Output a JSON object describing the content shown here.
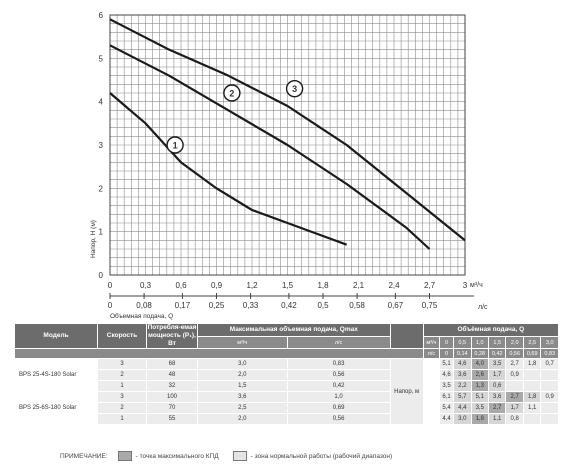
{
  "chart_data": {
    "type": "line",
    "ylabel": "Напор, Н (м)",
    "xlabel_top_unit": "м³/ч",
    "xlabel_bottom": "Объемная подача, Q",
    "xlabel_bottom_unit": "л/с",
    "xlim": [
      0,
      3.0
    ],
    "ylim": [
      0,
      6
    ],
    "y_ticks": [
      "0",
      "1",
      "2",
      "3",
      "4",
      "5",
      "6"
    ],
    "x_ticks_top": [
      "0",
      "0,3",
      "0,6",
      "0,9",
      "1,2",
      "1,5",
      "1,8",
      "2,1",
      "2,4",
      "2,7",
      "3"
    ],
    "x_ticks_top_values": [
      0,
      0.3,
      0.6,
      0.9,
      1.2,
      1.5,
      1.8,
      2.1,
      2.4,
      2.7,
      3.0
    ],
    "x_ticks_bottom": [
      "0",
      "0,08",
      "0,17",
      "0,25",
      "0,33",
      "0,42",
      "0,5",
      "0,58",
      "0,67",
      "0,75"
    ],
    "grid": true,
    "series": [
      {
        "name": "1",
        "x": [
          0,
          0.3,
          0.6,
          0.9,
          1.2,
          1.5,
          1.8,
          2.0
        ],
        "y": [
          4.2,
          3.5,
          2.6,
          2.0,
          1.5,
          1.2,
          0.9,
          0.7
        ],
        "label_at": [
          0.55,
          3.0
        ]
      },
      {
        "name": "2",
        "x": [
          0,
          0.5,
          1.0,
          1.5,
          2.0,
          2.5,
          2.7
        ],
        "y": [
          5.3,
          4.6,
          3.8,
          3.0,
          2.1,
          1.1,
          0.6
        ],
        "label_at": [
          1.03,
          4.2
        ]
      },
      {
        "name": "3",
        "x": [
          0,
          0.5,
          1.0,
          1.5,
          2.0,
          2.5,
          3.0
        ],
        "y": [
          5.9,
          5.2,
          4.6,
          3.9,
          3.0,
          1.9,
          0.8
        ],
        "label_at": [
          1.56,
          4.3
        ]
      }
    ]
  },
  "table": {
    "headers": {
      "model": "Модель",
      "speed": "Скорость",
      "power": "Потребля-емая мощность (P₁), Вт",
      "qmax": "Максимальная объемная подача, Qmax",
      "flow": "Объёмная подача, Q"
    },
    "sub_m3h": "м³/ч",
    "sub_ls": "л/с",
    "flow_m3h": [
      "0",
      "0,5",
      "1,0",
      "1,5",
      "2,0",
      "2,5",
      "3,0"
    ],
    "flow_ls": [
      "0",
      "0,14",
      "0,28",
      "0,42",
      "0,56",
      "0,69",
      "0,83"
    ],
    "head_label": "Напор, м",
    "rows": [
      {
        "model": "",
        "speed": "3",
        "power": "68",
        "q_m3h": "3,0",
        "q_ls": "0,83",
        "h": [
          "5,1",
          "4,6",
          "4,0",
          "3,5",
          "2,7",
          "1,8",
          "0,7"
        ],
        "dark": 2,
        "pale": 3
      },
      {
        "model": "BPS 25-4S-180 Solar",
        "speed": "2",
        "power": "48",
        "q_m3h": "2,0",
        "q_ls": "0,56",
        "h": [
          "4,6",
          "3,6",
          "2,6",
          "1,7",
          "0,9",
          "",
          ""
        ],
        "dark": 2,
        "pale": 3
      },
      {
        "model": "",
        "speed": "1",
        "power": "32",
        "q_m3h": "1,5",
        "q_ls": "0,42",
        "h": [
          "3,5",
          "2,2",
          "1,3",
          "0,6",
          "",
          "",
          ""
        ],
        "dark": 2,
        "pale": 3
      },
      {
        "model": "",
        "speed": "3",
        "power": "100",
        "q_m3h": "3,6",
        "q_ls": "1,0",
        "h": [
          "6,1",
          "5,7",
          "5,1",
          "3,6",
          "2,7",
          "1,8",
          "0,9"
        ],
        "dark": 4,
        "pale": 5
      },
      {
        "model": "BPS 25-6S-180 Solar",
        "speed": "2",
        "power": "70",
        "q_m3h": "2,5",
        "q_ls": "0,69",
        "h": [
          "5,4",
          "4,4",
          "3,5",
          "2,7",
          "1,7",
          "1,1",
          ""
        ],
        "dark": 3,
        "pale": 4
      },
      {
        "model": "",
        "speed": "1",
        "power": "55",
        "q_m3h": "2,0",
        "q_ls": "0,56",
        "h": [
          "4,4",
          "3,0",
          "1,8",
          "1,1",
          "0,8",
          "",
          ""
        ],
        "dark": 2,
        "pale": 3
      }
    ]
  },
  "note": {
    "label": "ПРИМЕЧАНИЕ:",
    "max_eff": "- точка максимального КПД",
    "work_zone": "- зона нормальной работы (рабочий диапазон)"
  }
}
